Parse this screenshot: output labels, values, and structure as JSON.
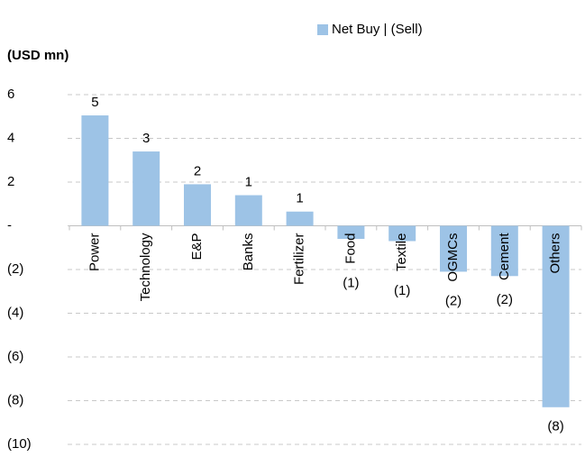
{
  "chart_data": {
    "type": "bar",
    "legend": "Net Buy | (Sell)",
    "y_axis_label": "(USD mn)",
    "categories": [
      "Power",
      "Technology",
      "E&P",
      "Banks",
      "Fertilizer",
      "Food",
      "Textile",
      "OGMCs",
      "Cement",
      "Others"
    ],
    "values": [
      5.05,
      3.4,
      1.9,
      1.4,
      0.65,
      -0.6,
      -0.7,
      -2.1,
      -2.3,
      -8.3
    ],
    "value_labels": [
      "5",
      "3",
      "2",
      "1",
      "1",
      "(1)",
      "(1)",
      "(2)",
      "(2)",
      "(8)"
    ],
    "color": "#9dc3e6",
    "ylim": [
      -10,
      6
    ],
    "yticks": [
      6,
      4,
      2,
      {
        "value": 0,
        "label": "-"
      },
      {
        "value": -2,
        "label": "(2)"
      },
      {
        "value": -4,
        "label": "(4)"
      },
      {
        "value": -6,
        "label": "(6)"
      },
      {
        "value": -8,
        "label": "(8)"
      },
      {
        "value": -10,
        "label": "(10)"
      }
    ],
    "grid": true
  }
}
